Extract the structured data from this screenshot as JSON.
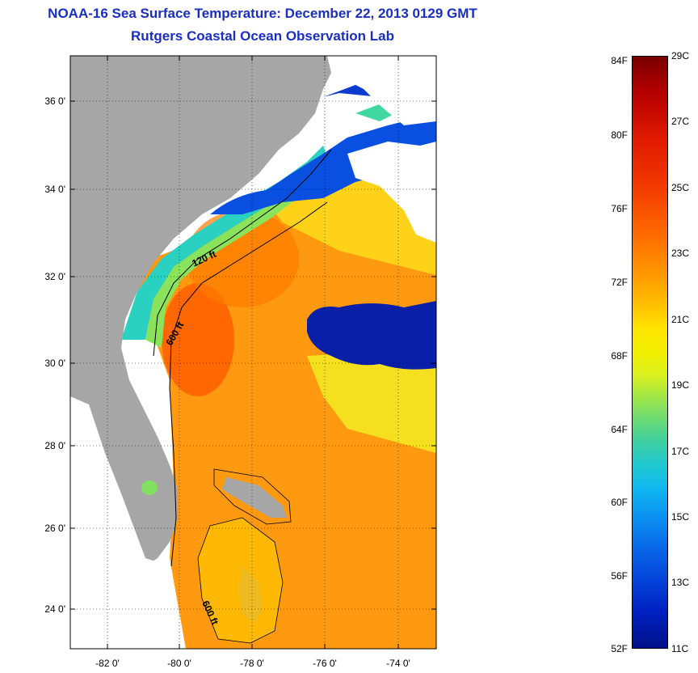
{
  "title": "NOAA-16 Sea Surface Temperature:  December 22, 2013 0129 GMT",
  "subtitle": "Rutgers Coastal Ocean Observation Lab",
  "map": {
    "lat_labels": [
      "36 0'",
      "34 0'",
      "32 0'",
      "30 0'",
      "28 0'",
      "26 0'",
      "24 0'"
    ],
    "lon_labels": [
      "-82 0'",
      "-80 0'",
      "-78 0'",
      "-76 0'",
      "-74 0'"
    ],
    "contour_labels": [
      "120 ft",
      "600 ft",
      "600 ft"
    ]
  },
  "colorbar": {
    "fahrenheit": [
      "84F",
      "80F",
      "76F",
      "72F",
      "68F",
      "64F",
      "60F",
      "56F",
      "52F"
    ],
    "celsius": [
      "29C",
      "27C",
      "25C",
      "23C",
      "21C",
      "19C",
      "17C",
      "15C",
      "13C",
      "11C"
    ]
  },
  "colors": {
    "title": "#1a2fbf",
    "land": "#a6a6a6"
  }
}
